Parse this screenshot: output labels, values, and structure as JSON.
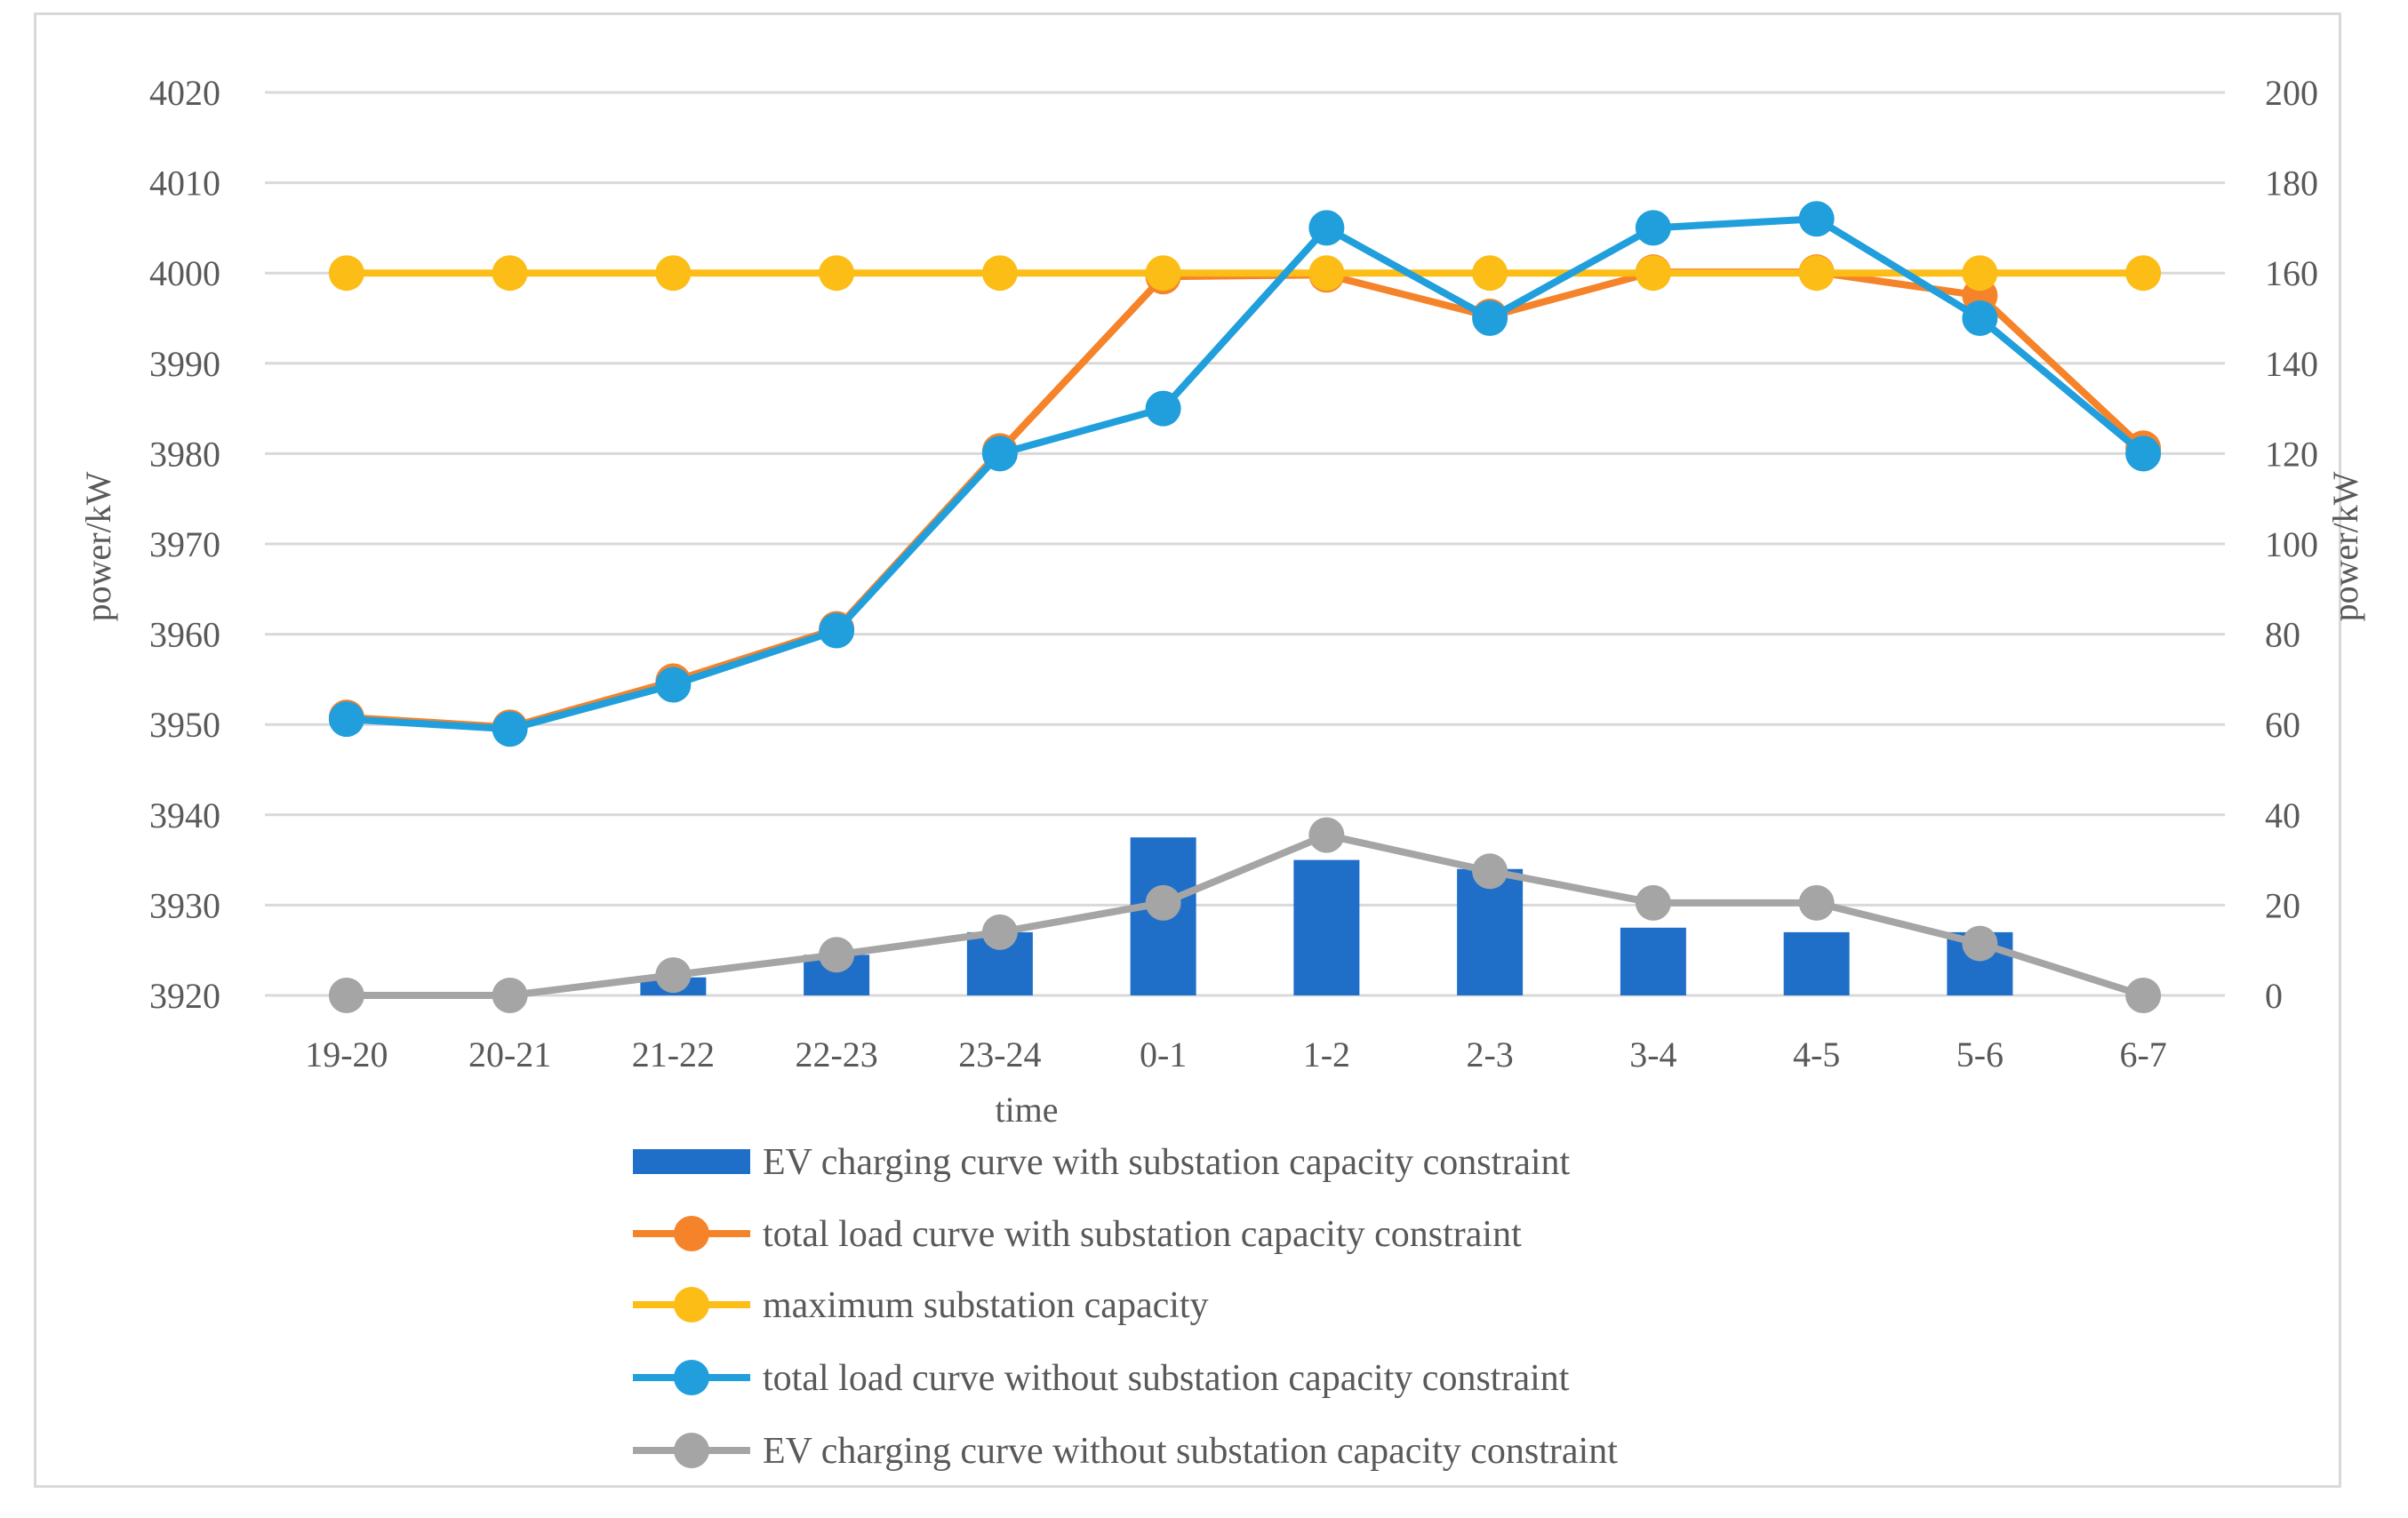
{
  "chart_data": {
    "type": "bar",
    "title": "",
    "xlabel": "time",
    "ylabel": "power/kW",
    "y2label": "power/kW",
    "ylim": [
      3920,
      4020
    ],
    "y2lim": [
      0,
      200
    ],
    "grid": true,
    "legend_position": "bottom",
    "categories": [
      "19-20",
      "20-21",
      "21-22",
      "22-23",
      "23-24",
      "0-1",
      "1-2",
      "2-3",
      "3-4",
      "4-5",
      "5-6",
      "6-7"
    ],
    "y_ticks": [
      4020,
      4010,
      4000,
      3990,
      3980,
      3970,
      3960,
      3950,
      3940,
      3930,
      3920
    ],
    "y2_ticks": [
      200,
      180,
      160,
      140,
      120,
      100,
      80,
      60,
      40,
      20,
      0
    ],
    "series": [
      {
        "name": "EV charging curve with substation capacity constraint",
        "kind": "bar",
        "axis": "right",
        "color": "#1f6fc9",
        "values": [
          0,
          0,
          4,
          9,
          14,
          35,
          30,
          28,
          15,
          14,
          14,
          0
        ]
      },
      {
        "name": "total load curve with substation capacity constraint",
        "kind": "line",
        "axis": "left",
        "color": "#f5832a",
        "values": [
          3950.8,
          3949.7,
          3954.8,
          3960.6,
          3980.3,
          3999.6,
          3999.8,
          3995.2,
          4000.1,
          4000.1,
          3997.5,
          3980.6
        ]
      },
      {
        "name": "maximum substation capacity",
        "kind": "line",
        "axis": "left",
        "color": "#fdbd17",
        "values": [
          4000,
          4000,
          4000,
          4000,
          4000,
          4000,
          4000,
          4000,
          4000,
          4000,
          4000,
          4000
        ]
      },
      {
        "name": "total load curve without substation capacity constraint",
        "kind": "line",
        "axis": "left",
        "color": "#219fdc",
        "values": [
          3950.6,
          3949.5,
          3954.4,
          3960.4,
          3980,
          3985,
          4005,
          3995,
          4005,
          4006,
          3995,
          3980
        ]
      },
      {
        "name": "EV charging curve without substation capacity constraint",
        "kind": "line",
        "axis": "right",
        "color": "#a5a5a5",
        "values": [
          0,
          0,
          4.5,
          9,
          14,
          20.5,
          35.5,
          27.5,
          20.5,
          20.5,
          11.5,
          0
        ]
      }
    ]
  }
}
